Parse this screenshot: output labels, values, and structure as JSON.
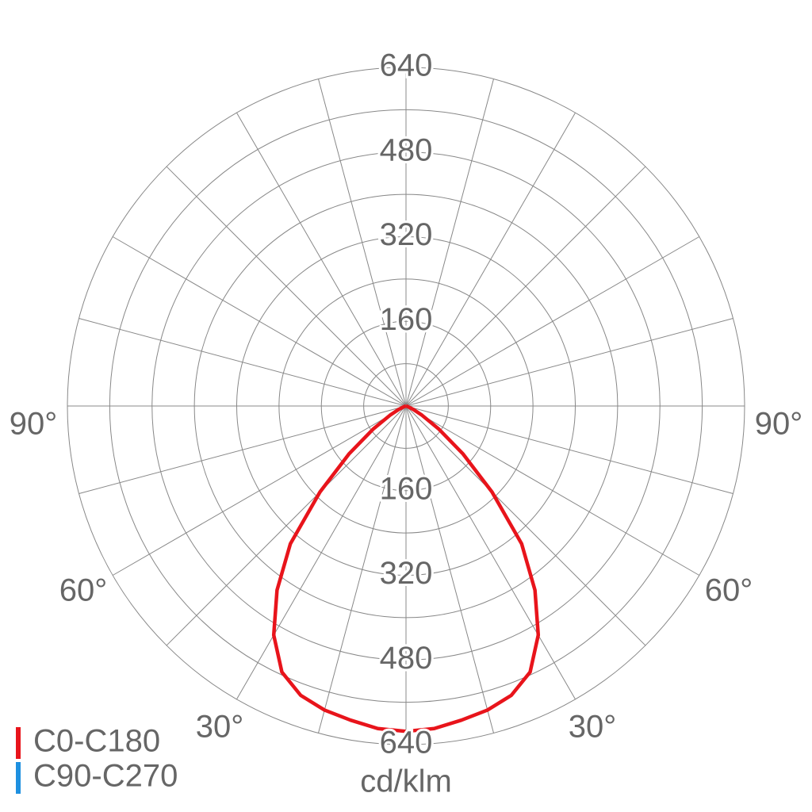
{
  "chart_data": {
    "type": "polar",
    "unit": "cd/klm",
    "rlim": [
      0,
      640
    ],
    "rticks": [
      160,
      320,
      480,
      640
    ],
    "rminor": [
      80,
      240,
      400,
      560
    ],
    "angle_step": 15,
    "angle_labels": [
      {
        "value": 90,
        "label": "90°"
      },
      {
        "value": 60,
        "label": "60°"
      },
      {
        "value": 30,
        "label": "30°"
      }
    ],
    "angles": [
      -90,
      -85,
      -80,
      -75,
      -70,
      -65,
      -60,
      -55,
      -50,
      -45,
      -40,
      -35,
      -30,
      -25,
      -20,
      -15,
      -10,
      -5,
      0,
      5,
      10,
      15,
      20,
      25,
      30,
      35,
      40,
      45,
      50,
      55,
      60,
      65,
      70,
      75,
      80,
      85,
      90
    ],
    "series": [
      {
        "name": "C0-C180",
        "color": "#e8141b",
        "values": [
          0,
          0,
          0,
          2,
          5,
          15,
          35,
          75,
          140,
          230,
          340,
          425,
          500,
          555,
          582,
          595,
          603,
          612,
          615,
          612,
          603,
          595,
          582,
          555,
          500,
          425,
          340,
          230,
          140,
          75,
          35,
          15,
          5,
          2,
          0,
          0,
          0
        ]
      },
      {
        "name": "C90-C270",
        "color": "#1e90e0"
      }
    ]
  }
}
